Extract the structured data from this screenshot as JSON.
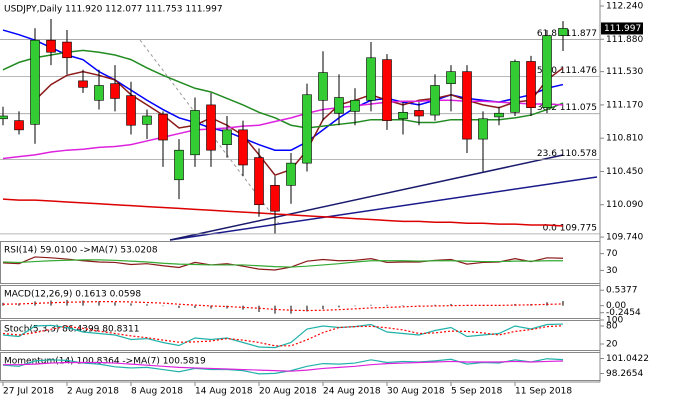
{
  "chart_data": [
    {
      "type": "candlestick",
      "title": "USDJPY,Daily 111.920 112.077 111.753 111.997",
      "categories": [
        "27 Jul 2018",
        null,
        null,
        null,
        "2 Aug 2018",
        null,
        null,
        null,
        "8 Aug 2018",
        null,
        null,
        null,
        "14 Aug 2018",
        null,
        null,
        null,
        "20 Aug 2018",
        null,
        null,
        null,
        "24 Aug 2018",
        null,
        null,
        null,
        "30 Aug 2018",
        null,
        null,
        null,
        "5 Sep 2018",
        null,
        null,
        null,
        "11 Sep 2018",
        null,
        null,
        null
      ],
      "open": [
        111.02,
        111.0,
        110.96,
        111.87,
        111.85,
        111.43,
        111.22,
        111.4,
        111.27,
        110.96,
        111.07,
        110.36,
        110.63,
        111.17,
        110.74,
        110.9,
        110.6,
        110.3,
        110.3,
        110.54,
        111.22,
        111.08,
        111.1,
        111.22,
        111.66,
        111.02,
        111.11,
        111.06,
        111.4,
        111.53,
        110.8,
        111.04,
        111.09,
        111.64,
        111.14,
        111.92
      ],
      "high": [
        111.15,
        111.1,
        112.0,
        112.1,
        111.98,
        111.55,
        111.55,
        111.6,
        111.42,
        111.12,
        111.1,
        110.8,
        111.25,
        111.3,
        111.05,
        111.0,
        110.7,
        110.4,
        110.65,
        111.4,
        111.75,
        111.5,
        111.35,
        111.85,
        111.72,
        111.2,
        111.2,
        111.5,
        111.6,
        111.6,
        111.1,
        111.15,
        111.66,
        111.7,
        111.98,
        112.077
      ],
      "low": [
        110.95,
        110.85,
        110.75,
        111.6,
        111.5,
        111.3,
        111.12,
        111.1,
        110.85,
        110.8,
        110.5,
        110.15,
        110.5,
        110.5,
        110.6,
        110.4,
        109.96,
        109.78,
        110.1,
        110.45,
        111.0,
        110.95,
        110.95,
        111.1,
        110.9,
        110.85,
        110.95,
        111.0,
        111.1,
        110.65,
        110.45,
        110.95,
        111.05,
        111.05,
        111.08,
        111.753
      ],
      "close": [
        111.05,
        110.9,
        111.87,
        111.74,
        111.68,
        111.36,
        111.38,
        111.24,
        110.95,
        111.05,
        110.79,
        110.68,
        111.11,
        110.68,
        110.9,
        110.52,
        110.09,
        110.02,
        110.54,
        111.28,
        111.52,
        111.25,
        111.22,
        111.68,
        111.0,
        111.09,
        111.05,
        111.38,
        111.53,
        110.8,
        111.02,
        111.08,
        111.64,
        111.14,
        111.92,
        111.997
      ],
      "up_color": "#33cc33",
      "down_color": "#ff0000",
      "ylim": [
        109.73,
        112.305
      ],
      "yticks": [
        {
          "value": 112.24,
          "label": "112.240"
        },
        {
          "value": 111.88,
          "label": "111.880"
        },
        {
          "value": 111.53,
          "label": "111.530"
        },
        {
          "value": 111.17,
          "label": "111.170"
        },
        {
          "value": 110.81,
          "label": "110.810"
        },
        {
          "value": 110.45,
          "label": "110.450"
        },
        {
          "value": 110.09,
          "label": "110.090"
        },
        {
          "value": 109.74,
          "label": "109.740"
        }
      ],
      "fib_levels": [
        {
          "value": 111.877,
          "label": "61.8 111.877"
        },
        {
          "value": 111.476,
          "label": "50.0 111.476"
        },
        {
          "value": 111.075,
          "label": "38.2 111.075"
        },
        {
          "value": 110.578,
          "label": "23.6 110.578"
        },
        {
          "value": 109.775,
          "label": "0.0 109.775"
        }
      ],
      "fib_color": "#a0a0a0",
      "lines": [
        {
          "color": "#0000ff",
          "values": [
            111.98,
            111.93,
            111.87,
            111.79,
            111.71,
            111.66,
            111.53,
            111.44,
            111.33,
            111.22,
            111.12,
            111.03,
            110.98,
            110.92,
            110.88,
            110.81,
            110.74,
            110.68,
            110.68,
            110.77,
            110.9,
            111.03,
            111.14,
            111.22,
            111.24,
            111.2,
            111.17,
            111.22,
            111.28,
            111.24,
            111.22,
            111.2,
            111.24,
            111.28,
            111.35,
            111.39
          ]
        },
        {
          "color": "#8b1a1a",
          "values": [
            null,
            null,
            111.22,
            111.39,
            111.49,
            111.53,
            111.49,
            111.44,
            111.28,
            111.17,
            111.06,
            110.92,
            110.95,
            111.03,
            110.95,
            110.84,
            110.63,
            110.41,
            110.47,
            110.68,
            111.01,
            111.17,
            111.22,
            111.28,
            111.22,
            111.17,
            111.22,
            111.24,
            111.28,
            111.22,
            111.17,
            111.14,
            111.2,
            111.22,
            111.44,
            111.57
          ]
        },
        {
          "color": "#228b22",
          "values": [
            111.55,
            111.63,
            111.68,
            111.71,
            111.74,
            111.76,
            111.74,
            111.71,
            111.66,
            111.57,
            111.49,
            111.42,
            111.35,
            111.31,
            111.24,
            111.17,
            111.09,
            111.03,
            110.95,
            110.92,
            110.94,
            110.96,
            110.98,
            111.01,
            111.01,
            111.01,
            110.98,
            110.98,
            111.01,
            111.01,
            111.01,
            111.01,
            111.03,
            111.06,
            111.12,
            111.19
          ]
        },
        {
          "color": "#dd22dd",
          "values": [
            110.59,
            110.61,
            110.63,
            110.66,
            110.68,
            110.69,
            110.71,
            110.72,
            110.74,
            110.78,
            110.82,
            110.86,
            110.9,
            110.91,
            110.92,
            110.94,
            110.95,
            110.99,
            111.03,
            111.08,
            111.12,
            111.14,
            111.16,
            111.18,
            111.2,
            111.21,
            111.21,
            111.22,
            111.22,
            111.21,
            111.21,
            111.2,
            111.19,
            111.18,
            111.18,
            111.17
          ]
        },
        {
          "color": "#dd0000",
          "values": [
            110.15,
            110.14,
            110.14,
            110.13,
            110.12,
            110.11,
            110.1,
            110.09,
            110.08,
            110.07,
            110.06,
            110.05,
            110.04,
            110.03,
            110.02,
            110.01,
            110.0,
            109.99,
            109.98,
            109.97,
            109.96,
            109.95,
            109.94,
            109.93,
            109.92,
            109.91,
            109.91,
            109.9,
            109.9,
            109.89,
            109.89,
            109.88,
            109.88,
            109.87,
            109.87,
            109.86
          ]
        }
      ]
    },
    {
      "type": "line",
      "title": "RSI(14) 59.0100 ->MA(7) 53.0208",
      "ylim": [
        0,
        100
      ],
      "yticks": [
        30,
        70
      ],
      "series": [
        {
          "color": "#8b1a1a",
          "values": [
            48,
            46,
            62,
            60,
            57,
            53,
            50,
            49,
            44,
            46,
            41,
            37,
            49,
            43,
            46,
            40,
            33,
            31,
            38,
            52,
            56,
            53,
            54,
            58,
            49,
            50,
            50,
            54,
            56,
            45,
            49,
            50,
            58,
            51,
            60,
            59.01
          ]
        },
        {
          "color": "#33aa33",
          "values": [
            50,
            49,
            51,
            53,
            54,
            55,
            55,
            54,
            52,
            50,
            47,
            45,
            44,
            43,
            43,
            43,
            41,
            39,
            38,
            40,
            43,
            46,
            50,
            53,
            53,
            53,
            52,
            53,
            53,
            52,
            51,
            51,
            52,
            52,
            53,
            53.02
          ]
        }
      ]
    },
    {
      "type": "macd",
      "title": "MACD(12,26,9) 0.1613 0.0598",
      "ylim": [
        -0.43,
        0.72
      ],
      "yticks": [
        0.5377,
        {
          "value": 0,
          "label": "0.00"
        },
        -0.2454
      ],
      "series": [
        {
          "color": "#808080",
          "style": "bar",
          "values": [
            0.1,
            0.08,
            0.15,
            0.18,
            0.2,
            0.18,
            0.15,
            0.12,
            0.08,
            0.05,
            0.0,
            -0.08,
            -0.08,
            -0.1,
            -0.1,
            -0.14,
            -0.22,
            -0.28,
            -0.28,
            -0.2,
            -0.12,
            -0.06,
            -0.02,
            0.03,
            0.03,
            0.02,
            0.01,
            0.03,
            0.06,
            0.02,
            0.01,
            0.01,
            0.06,
            0.06,
            0.12,
            0.1613
          ]
        },
        {
          "color": "#ff0000",
          "style": "dotted",
          "values": [
            0.05,
            0.06,
            0.08,
            0.1,
            0.12,
            0.13,
            0.14,
            0.14,
            0.13,
            0.11,
            0.09,
            0.05,
            0.02,
            -0.01,
            -0.03,
            -0.06,
            -0.09,
            -0.13,
            -0.16,
            -0.17,
            -0.16,
            -0.14,
            -0.11,
            -0.08,
            -0.06,
            -0.04,
            -0.02,
            -0.01,
            0.0,
            0.01,
            0.01,
            0.01,
            0.02,
            0.03,
            0.045,
            0.0598
          ]
        }
      ]
    },
    {
      "type": "line",
      "title": "Stoch(5,3,3) 86.4399 80.8311",
      "ylim": [
        0,
        100
      ],
      "yticks": [
        20,
        80,
        100
      ],
      "series": [
        {
          "color": "#20b2aa",
          "values": [
            50,
            45,
            80,
            82,
            75,
            60,
            55,
            50,
            35,
            38,
            25,
            15,
            40,
            35,
            40,
            25,
            10,
            8,
            25,
            70,
            80,
            75,
            78,
            85,
            60,
            55,
            50,
            65,
            75,
            45,
            50,
            55,
            80,
            70,
            85,
            86.44
          ]
        },
        {
          "color": "#ff0000",
          "style": "dotted",
          "values": [
            55,
            50,
            58,
            69,
            79,
            72,
            63,
            55,
            47,
            41,
            33,
            26,
            27,
            30,
            38,
            33,
            25,
            14,
            14,
            34,
            58,
            75,
            78,
            79,
            74,
            67,
            55,
            57,
            63,
            62,
            57,
            50,
            62,
            68,
            78,
            80.83
          ]
        }
      ]
    },
    {
      "type": "line",
      "title": "Momentum(14) 100.8364 ->MA(7) 100.5819",
      "ylim": [
        97.07,
        102.24
      ],
      "yticks": [
        101.0422,
        98.2654
      ],
      "series": [
        {
          "color": "#20b2aa",
          "values": [
            99.8,
            99.6,
            100.6,
            100.8,
            100.7,
            100.2,
            100.0,
            99.5,
            99.3,
            99.4,
            99.0,
            98.6,
            99.2,
            99.0,
            99.0,
            98.8,
            98.2,
            98.3,
            98.8,
            99.6,
            100.1,
            100.0,
            100.2,
            100.8,
            100.3,
            100.5,
            100.4,
            100.6,
            100.9,
            100.0,
            100.3,
            100.2,
            100.8,
            100.4,
            101.0,
            100.8364
          ]
        },
        {
          "color": "#dd22dd",
          "values": [
            99.9,
            99.9,
            100.0,
            100.2,
            100.3,
            100.3,
            100.3,
            100.2,
            100.0,
            99.8,
            99.6,
            99.4,
            99.3,
            99.2,
            99.1,
            99.0,
            98.9,
            98.8,
            98.7,
            98.9,
            99.2,
            99.4,
            99.6,
            99.9,
            100.1,
            100.2,
            100.3,
            100.4,
            100.5,
            100.4,
            100.4,
            100.4,
            100.5,
            100.4,
            100.5,
            100.5819
          ]
        }
      ]
    }
  ]
}
